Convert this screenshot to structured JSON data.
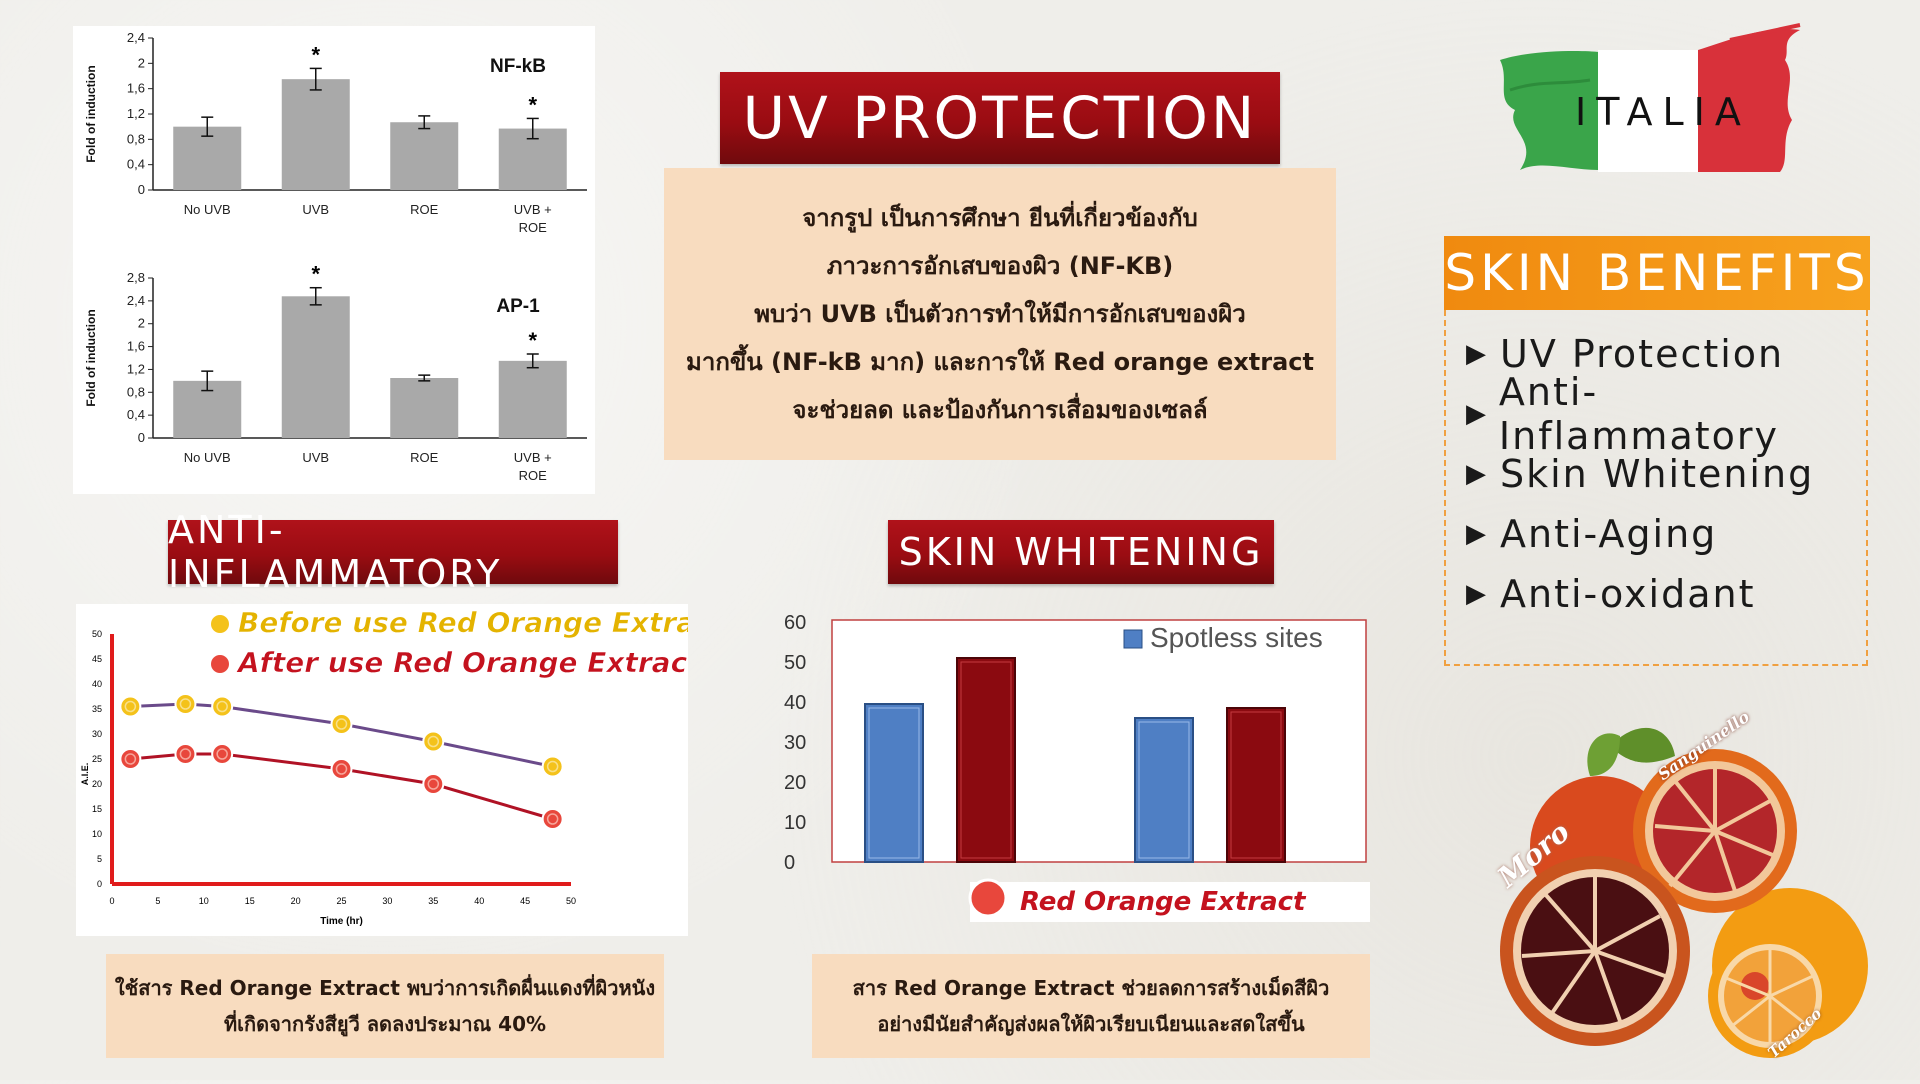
{
  "uv_protection": {
    "title": "UV PROTECTION",
    "lines": [
      "จากรูป เป็นการศึกษา ยีนที่เกี่ยวข้องกับ",
      "ภาวะการอักเสบของผิว (NF-KB)",
      "พบว่า UVB เป็นตัวการทำให้มีการอักเสบของผิว",
      "มากขึ้น (NF-kB มาก) และการให้ Red orange extract",
      "จะช่วยลด และป้องกันการเสื่อมของเซลล์"
    ]
  },
  "italia": {
    "label": "ITALIA",
    "colors": [
      "#3aa54a",
      "#ffffff",
      "#d8313a"
    ]
  },
  "skin_benefits": {
    "title": "SKIN BENEFITS",
    "items": [
      "UV Protection",
      "Anti-Inflammatory",
      "Skin Whitening",
      "Anti-Aging",
      "Anti-oxidant"
    ]
  },
  "anti_inflammatory": {
    "title": "ANTI-INFLAMMATORY",
    "caption_lines": [
      "ใช้สาร Red Orange Extract พบว่าการเกิดผื่นแดงที่ผิวหนัง",
      "ที่เกิดจากรังสียูวี ลดลงประมาณ 40%"
    ]
  },
  "skin_whitening": {
    "title": "SKIN WHITENING",
    "caption_lines": [
      "สาร Red Orange Extract ช่วยลดการสร้างเม็ดสีผิว",
      "อย่างมีนัยสำคัญส่งผลให้ผิวเรียบเนียนและสดใสขึ้น"
    ]
  },
  "oranges": {
    "labels": [
      "Moro",
      "Sanguinello",
      "Tarocco"
    ]
  },
  "chart_data": [
    {
      "type": "bar",
      "title": "NF-kB",
      "ylabel": "Fold of induction",
      "categories": [
        "No UVB",
        "UVB",
        "ROE",
        "UVB + ROE"
      ],
      "values": [
        1.0,
        1.75,
        1.07,
        0.97
      ],
      "errors": [
        0.15,
        0.17,
        0.1,
        0.16
      ],
      "significance": [
        "",
        "*",
        "",
        "*"
      ],
      "ylim": [
        0,
        2.4
      ],
      "yticks": [
        "0",
        "0,4",
        "0,8",
        "1,2",
        "1,6",
        "2",
        "2,4"
      ],
      "colors": {
        "bar": "#a9a9a9"
      }
    },
    {
      "type": "bar",
      "title": "AP-1",
      "ylabel": "Fold of induction",
      "categories": [
        "No UVB",
        "UVB",
        "ROE",
        "UVB + ROE"
      ],
      "values": [
        1.0,
        2.48,
        1.05,
        1.35
      ],
      "errors": [
        0.17,
        0.15,
        0.05,
        0.12
      ],
      "significance": [
        "",
        "*",
        "",
        "*"
      ],
      "ylim": [
        0,
        2.8
      ],
      "yticks": [
        "0",
        "0,4",
        "0,8",
        "1,2",
        "1,6",
        "2",
        "2,4",
        "2,8"
      ],
      "colors": {
        "bar": "#a9a9a9"
      }
    },
    {
      "type": "line",
      "xlabel": "Time (hr)",
      "ylabel": "A.I.E.",
      "xlim": [
        0,
        50
      ],
      "ylim": [
        0,
        50
      ],
      "xticks": [
        0,
        5,
        10,
        15,
        20,
        25,
        30,
        35,
        40,
        45,
        50
      ],
      "yticks": [
        0,
        5,
        10,
        15,
        20,
        25,
        30,
        35,
        40,
        45,
        50
      ],
      "series": [
        {
          "name": "Before use Red Orange Extract",
          "x": [
            2,
            8,
            12,
            25,
            35,
            48
          ],
          "y": [
            35.5,
            36,
            35.5,
            32,
            28.5,
            23.5
          ],
          "color": "#6a4a8a",
          "marker": "#f4c21a",
          "label_color": "#e4b300"
        },
        {
          "name": "After use Red Orange Extract",
          "x": [
            2,
            8,
            12,
            25,
            35,
            48
          ],
          "y": [
            25,
            26,
            26,
            23,
            20,
            13
          ],
          "color": "#b01225",
          "marker": "#e8473c",
          "label_color": "#c4121e"
        }
      ]
    },
    {
      "type": "bar",
      "ylim": [
        0,
        60
      ],
      "yticks": [
        0,
        10,
        20,
        30,
        40,
        50,
        60
      ],
      "groups": [
        {
          "values": [
            39.5,
            51
          ]
        },
        {
          "values": [
            36,
            38.5
          ]
        }
      ],
      "legend": "Spotless sites",
      "footer_label": "Red Orange Extract",
      "colors": {
        "blue": "#4f7fc4",
        "red": "#8b0a10"
      }
    }
  ]
}
